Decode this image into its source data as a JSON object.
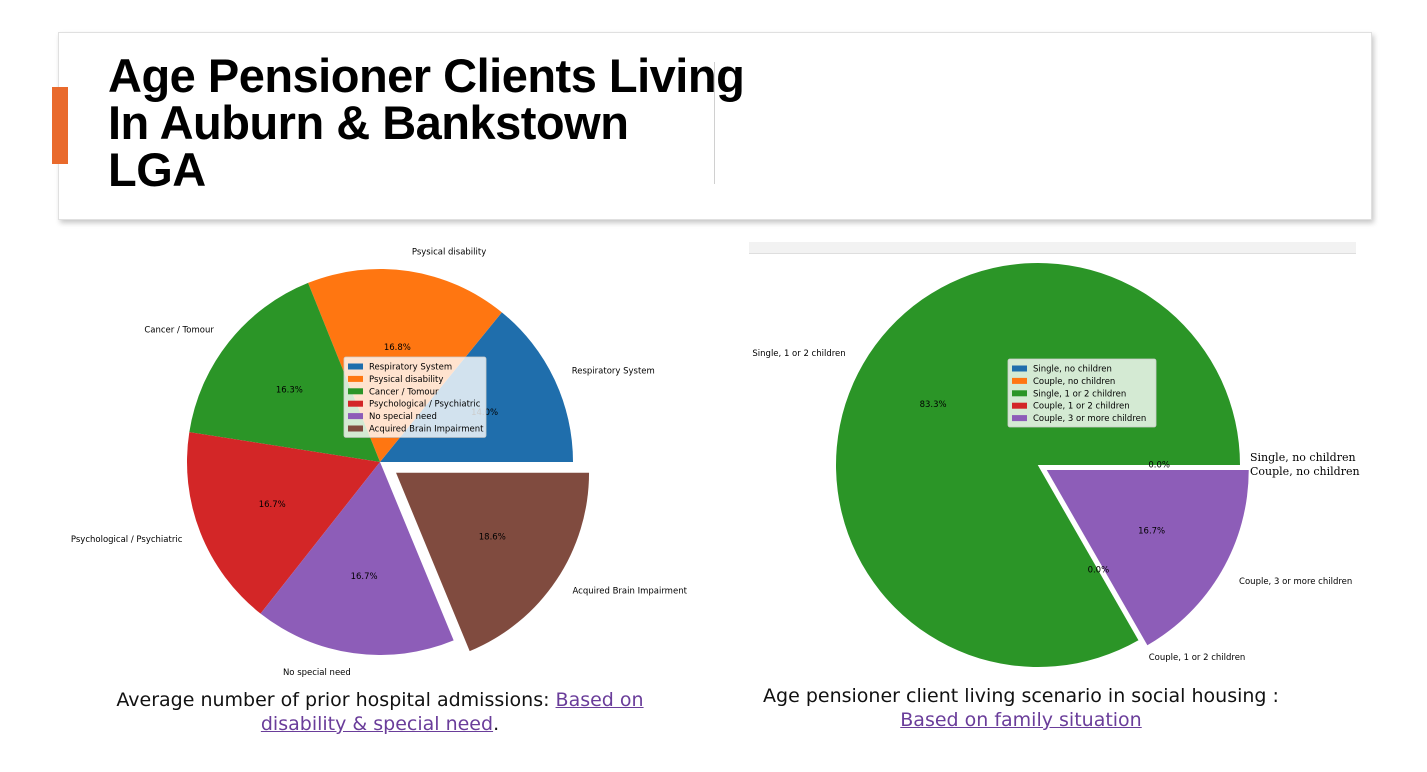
{
  "slide": {
    "title": "Age Pensioner Clients Living\nIn Auburn & Bankstown\nLGA",
    "accent_color": "#e96a2c"
  },
  "captions": {
    "left": {
      "text": "Average number of prior hospital admissions: ",
      "link": "Based on disability & special need",
      "suffix": "."
    },
    "right": {
      "text": "Age pensioner client living scenario in social housing : ",
      "link": "Based on family situation",
      "suffix": ""
    }
  },
  "chart_data": [
    {
      "type": "pie",
      "title": "",
      "start_angle_deg": 0,
      "categories": [
        "Respiratory System",
        "Psysical disability",
        "Cancer / Tomour",
        "Psychological / Psychiatric",
        "No special need",
        "Acquired Brain Impairment"
      ],
      "values": [
        14.0,
        16.8,
        16.3,
        16.7,
        16.7,
        18.6
      ],
      "pct_labels": [
        "14.0%",
        "16.8%",
        "16.3%",
        "16.7%",
        "16.7%",
        "18.6%"
      ],
      "explode": [
        0,
        0,
        0,
        0,
        0,
        0.1
      ],
      "colors": [
        "#1f6eac",
        "#ff7611",
        "#2b9527",
        "#d32627",
        "#8d5db8",
        "#804b3f"
      ],
      "legend": {
        "position": "center",
        "entries": [
          "Respiratory System",
          "Psysical disability",
          "Cancer / Tomour",
          "Psychological / Psychiatric",
          "No special need",
          "Acquired Brain Impairment"
        ]
      }
    },
    {
      "type": "pie",
      "title": "",
      "start_angle_deg": 0,
      "categories": [
        "Single, no children",
        "Couple, no children",
        "Single, 1 or 2 children",
        "Couple, 1 or 2 children",
        "Couple, 3 or more children"
      ],
      "values": [
        0.0,
        0.0,
        83.3,
        0.0,
        16.7
      ],
      "pct_labels": [
        "0.0%",
        "",
        "83.3%",
        "0.0%",
        "16.7%"
      ],
      "explode": [
        0,
        0,
        0,
        0,
        0.05
      ],
      "colors": [
        "#1f6eac",
        "#ff7611",
        "#2b9527",
        "#d32627",
        "#8d5db8"
      ],
      "legend": {
        "position": "center",
        "entries": [
          "Single, no children",
          "Couple, no children",
          "Single, 1 or 2 children",
          "Couple, 1 or 2 children",
          "Couple, 3 or more children"
        ]
      }
    }
  ]
}
